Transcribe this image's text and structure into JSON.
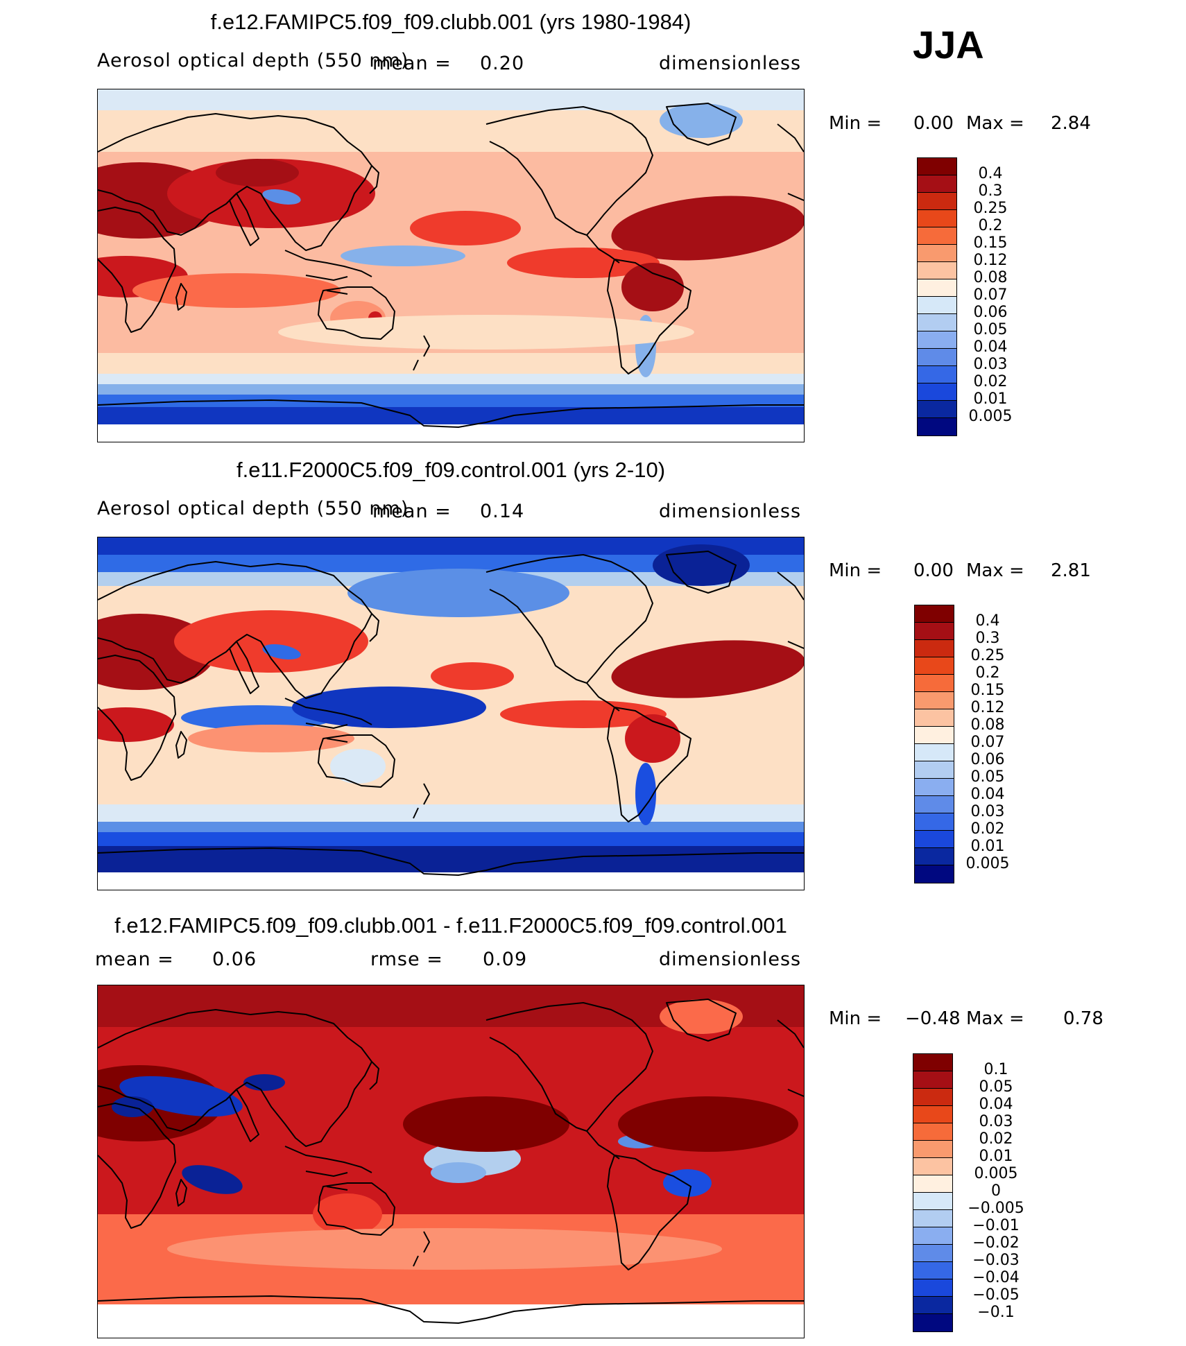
{
  "season": "JJA",
  "colors": {
    "warm": [
      "#fde0c5",
      "#fcbba1",
      "#fc9272",
      "#fb6a4a",
      "#ef3b2c",
      "#cb181d",
      "#a50f15",
      "#7f0000"
    ],
    "cool": [
      "#dbe9f6",
      "#b3cfee",
      "#86b1ea",
      "#5b8fe6",
      "#2f6be6",
      "#1a4ee0",
      "#1036c0",
      "#0a2296",
      "#000e7a"
    ]
  },
  "panels": [
    {
      "title": "f.e12.FAMIPC5.f09_f09.clubb.001 (yrs 1980-1984)",
      "field": "Aerosol optical depth (550 nm)",
      "mean_label": "mean =",
      "mean": "0.20",
      "units": "dimensionless",
      "min_label": "Min =",
      "min": "0.00",
      "max_label": "Max =",
      "max": "2.84",
      "levels": [
        "0.4",
        "0.3",
        "0.25",
        "0.2",
        "0.15",
        "0.12",
        "0.08",
        "0.07",
        "0.06",
        "0.05",
        "0.04",
        "0.03",
        "0.02",
        "0.01",
        "0.005"
      ],
      "swatches": [
        "#7f0000",
        "#a50f15",
        "#cb2a10",
        "#e8481a",
        "#f66b3a",
        "#f99a6e",
        "#fcc3a2",
        "#fff0e0",
        "#d6e8f8",
        "#b2cdf1",
        "#8aaef0",
        "#5f8be8",
        "#3568e6",
        "#1a48dc",
        "#0a28a0",
        "#000880"
      ]
    },
    {
      "title": "f.e11.F2000C5.f09_f09.control.001 (yrs 2-10)",
      "field": "Aerosol optical depth (550 nm)",
      "mean_label": "mean =",
      "mean": "0.14",
      "units": "dimensionless",
      "min_label": "Min =",
      "min": "0.00",
      "max_label": "Max =",
      "max": "2.81",
      "levels": [
        "0.4",
        "0.3",
        "0.25",
        "0.2",
        "0.15",
        "0.12",
        "0.08",
        "0.07",
        "0.06",
        "0.05",
        "0.04",
        "0.03",
        "0.02",
        "0.01",
        "0.005"
      ],
      "swatches": [
        "#7f0000",
        "#a50f15",
        "#cb2a10",
        "#e8481a",
        "#f66b3a",
        "#f99a6e",
        "#fcc3a2",
        "#fff0e0",
        "#d6e8f8",
        "#b2cdf1",
        "#8aaef0",
        "#5f8be8",
        "#3568e6",
        "#1a48dc",
        "#0a28a0",
        "#000880"
      ]
    },
    {
      "title": "f.e12.FAMIPC5.f09_f09.clubb.001 - f.e11.F2000C5.f09_f09.control.001",
      "mean_label": "mean =",
      "mean": "0.06",
      "rmse_label": "rmse =",
      "rmse": "0.09",
      "units": "dimensionless",
      "min_label": "Min =",
      "min": "−0.48",
      "max_label": "Max =",
      "max": "0.78",
      "levels": [
        "0.1",
        "0.05",
        "0.04",
        "0.03",
        "0.02",
        "0.01",
        "0.005",
        "0",
        "−0.005",
        "−0.01",
        "−0.02",
        "−0.03",
        "−0.04",
        "−0.05",
        "−0.1"
      ],
      "swatches": [
        "#7f0000",
        "#a50f15",
        "#cb2a10",
        "#e8481a",
        "#f66b3a",
        "#f99a6e",
        "#fcc3a2",
        "#fff0e0",
        "#d6e8f8",
        "#b2cdf1",
        "#8aaef0",
        "#5f8be8",
        "#3568e6",
        "#1a48dc",
        "#0a28a0",
        "#000880"
      ]
    }
  ]
}
